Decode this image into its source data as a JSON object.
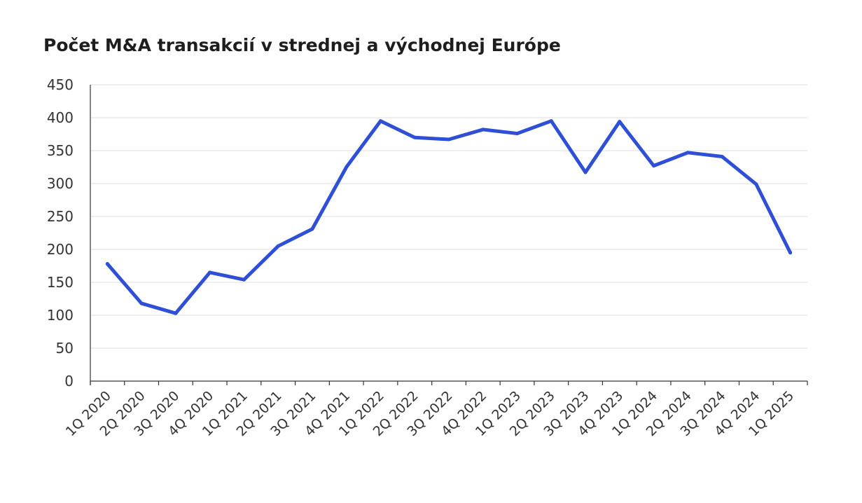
{
  "chart_data": {
    "type": "line",
    "title": "Počet M&A transakcií v strednej a východnej Európe",
    "xlabel": "",
    "ylabel": "",
    "categories": [
      "1Q 2020",
      "2Q 2020",
      "3Q 2020",
      "4Q 2020",
      "1Q 2021",
      "2Q 2021",
      "3Q 2021",
      "4Q 2021",
      "1Q 2022",
      "2Q 2022",
      "3Q 2022",
      "4Q 2022",
      "1Q 2023",
      "2Q 2023",
      "3Q 2023",
      "4Q 2023",
      "1Q 2024",
      "2Q 2024",
      "3Q 2024",
      "4Q 2024",
      "1Q 2025"
    ],
    "series": [
      {
        "values": [
          178,
          118,
          103,
          165,
          154,
          205,
          231,
          325,
          395,
          370,
          367,
          382,
          376,
          395,
          317,
          394,
          327,
          347,
          341,
          299,
          195
        ],
        "color": "#2e4fd6"
      }
    ],
    "ylim": [
      0,
      450
    ],
    "yticks": [
      0,
      50,
      100,
      150,
      200,
      250,
      300,
      350,
      400,
      450
    ],
    "grid": true,
    "legend": "none"
  }
}
